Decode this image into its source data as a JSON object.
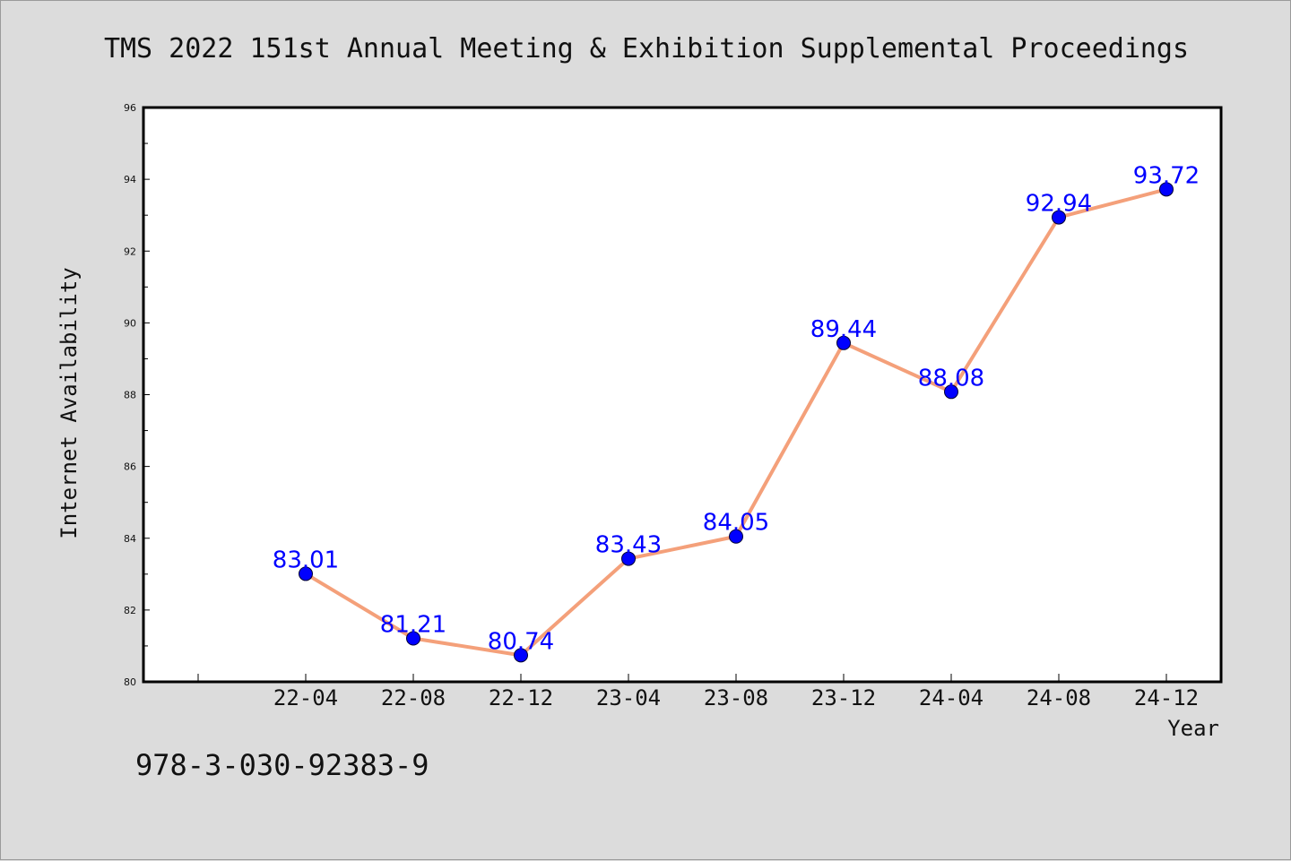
{
  "colors": {
    "background": "#dcdcdc",
    "plot_area": "#ffffff",
    "line": "#f4a07a",
    "marker": "#0000ff",
    "data_label": "#0000ff",
    "text": "#111111"
  },
  "footer": {
    "isbn": "978-3-030-92383-9"
  },
  "chart_data": {
    "type": "line",
    "title": "TMS 2022 151st Annual Meeting & Exhibition Supplemental Proceedings",
    "xlabel": "Year",
    "ylabel": "Internet Availability",
    "categories": [
      "22-04",
      "22-08",
      "22-12",
      "23-04",
      "23-08",
      "23-12",
      "24-04",
      "24-08",
      "24-12"
    ],
    "series": [
      {
        "values": [
          83.01,
          81.21,
          80.74,
          83.43,
          84.05,
          89.44,
          88.08,
          92.94,
          93.72
        ],
        "data_labels": [
          "83.01",
          "81.21",
          "80.74",
          "83.43",
          "84.05",
          "89.44",
          "88.08",
          "92.94",
          "93.72"
        ]
      }
    ],
    "ylim": [
      80,
      96
    ],
    "yticks": [
      80,
      82,
      84,
      86,
      88,
      90,
      92,
      94,
      96
    ],
    "ytick_labels": [
      "80",
      "82",
      "84",
      "86",
      "88",
      "90",
      "92",
      "94",
      "96"
    ],
    "grid": false,
    "legend": "none"
  }
}
